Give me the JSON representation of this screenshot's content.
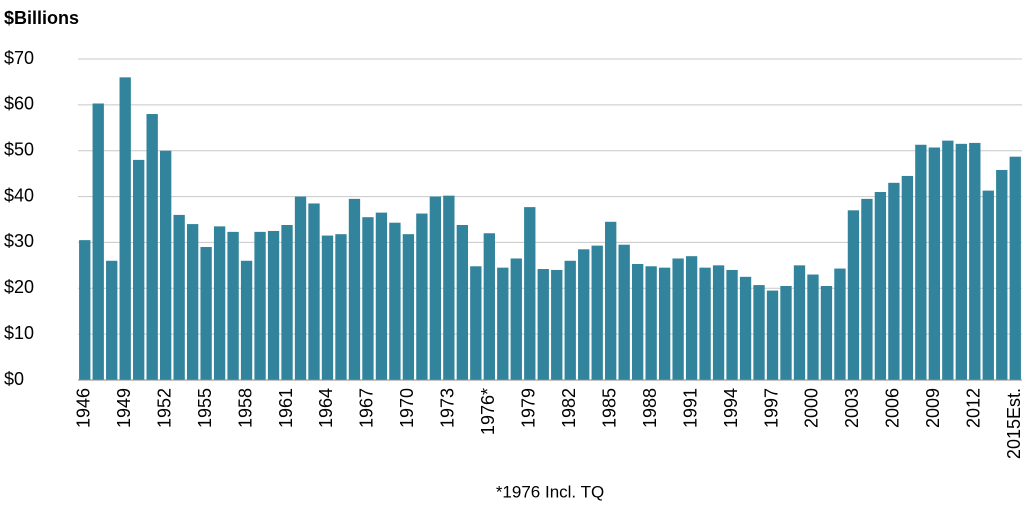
{
  "chart_data": {
    "type": "bar",
    "y_label": "$Billions",
    "footnote": "*1976 Incl. TQ",
    "categories": [
      "1946",
      null,
      null,
      "1949",
      null,
      null,
      "1952",
      null,
      null,
      "1955",
      null,
      null,
      "1958",
      null,
      null,
      "1961",
      null,
      null,
      "1964",
      null,
      null,
      "1967",
      null,
      null,
      "1970",
      null,
      null,
      "1973",
      null,
      null,
      "1976*",
      null,
      null,
      "1979",
      null,
      null,
      "1982",
      null,
      null,
      "1985",
      null,
      null,
      "1988",
      null,
      null,
      "1991",
      null,
      null,
      "1994",
      null,
      null,
      "1997",
      null,
      null,
      "2000",
      null,
      null,
      "2003",
      null,
      null,
      "2006",
      null,
      null,
      "2009",
      null,
      null,
      "2012",
      null,
      null,
      "2015Est."
    ],
    "values": [
      30.5,
      60.3,
      26,
      66,
      48,
      58,
      50,
      36,
      34,
      29,
      33.5,
      32.3,
      26,
      32.3,
      32.5,
      33.8,
      40,
      38.5,
      31.5,
      31.8,
      39.5,
      35.5,
      36.5,
      34.3,
      31.8,
      36.3,
      40,
      40.2,
      33.8,
      24.8,
      32,
      24.5,
      26.5,
      37.7,
      24.2,
      24,
      26,
      28.5,
      29.3,
      34.5,
      29.5,
      25.3,
      24.8,
      24.5,
      26.5,
      27,
      24.5,
      25,
      24,
      22.5,
      20.7,
      19.5,
      20.5,
      25,
      23,
      20.5,
      24.3,
      37,
      39.5,
      41,
      43,
      44.5,
      51.3,
      50.7,
      52.2,
      51.5,
      51.7,
      41.3,
      45.8,
      48.7
    ],
    "color": "#31849b",
    "ylim": [
      0,
      70
    ],
    "yticks": [
      {
        "value": 0,
        "label": "$0"
      },
      {
        "value": 10,
        "label": "$10"
      },
      {
        "value": 20,
        "label": "$20"
      },
      {
        "value": 30,
        "label": "$30"
      },
      {
        "value": 40,
        "label": "$40"
      },
      {
        "value": 50,
        "label": "$50"
      },
      {
        "value": 60,
        "label": "$60"
      },
      {
        "value": 70,
        "label": "$70"
      }
    ],
    "grid": true
  }
}
